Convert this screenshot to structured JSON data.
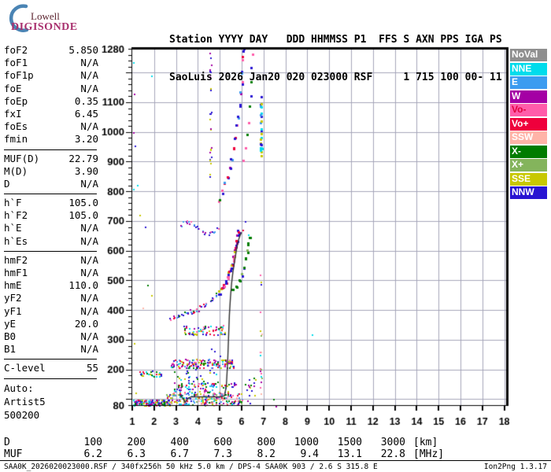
{
  "header": {
    "logo_line1": "Lowell",
    "logo_line2": "DIGISONDE",
    "line1": "Station YYYY DAY   DDD HHMMSS P1  FFS S AXN PPS IGA PS",
    "line2": "SaoLuis 2026 Jan20 020 023000 RSF     1 715 100 00- 11"
  },
  "params": {
    "groups": [
      {
        "rows": [
          [
            "foF2",
            "5.850"
          ],
          [
            "foF1",
            "N/A"
          ],
          [
            "foF1p",
            "N/A"
          ],
          [
            "foE",
            "N/A"
          ],
          [
            "foEp",
            "0.35"
          ],
          [
            "fxI",
            "6.45"
          ],
          [
            "foEs",
            "N/A"
          ],
          [
            "fmin",
            "3.20"
          ]
        ]
      },
      {
        "rows": [
          [
            "MUF(D)",
            "22.79"
          ],
          [
            "M(D)",
            "3.90"
          ],
          [
            "D",
            "N/A"
          ]
        ]
      },
      {
        "rows": [
          [
            "h`F",
            "105.0"
          ],
          [
            "h`F2",
            "105.0"
          ],
          [
            "h`E",
            "N/A"
          ],
          [
            "h`Es",
            "N/A"
          ]
        ]
      },
      {
        "rows": [
          [
            "hmF2",
            "N/A"
          ],
          [
            "hmF1",
            "N/A"
          ],
          [
            "hmE",
            "110.0"
          ],
          [
            "yF2",
            "N/A"
          ],
          [
            "yF1",
            "N/A"
          ],
          [
            "yE",
            "20.0"
          ],
          [
            "B0",
            "N/A"
          ],
          [
            "B1",
            "N/A"
          ]
        ]
      },
      {
        "rows": [
          [
            "C-level",
            "55"
          ]
        ]
      },
      {
        "rows": [
          [
            "Auto:",
            ""
          ],
          [
            "Artist5",
            ""
          ],
          [
            "500200",
            ""
          ]
        ],
        "no_sep": true,
        "wide": true
      }
    ]
  },
  "legend": {
    "items": [
      {
        "label": "NoVal",
        "color": "#8f8f8f",
        "text": "#ffffff"
      },
      {
        "label": "NNE",
        "color": "#00dcec",
        "text": "#ffffff"
      },
      {
        "label": "E",
        "color": "#3c9cf0",
        "text": "#ffffff"
      },
      {
        "label": "W",
        "color": "#a400a4",
        "text": "#ffffff"
      },
      {
        "label": "Vo-",
        "color": "#ff5caa",
        "text": "#e0003c"
      },
      {
        "label": "Vo+",
        "color": "#ef003c",
        "text": "#ffffff"
      },
      {
        "label": "SSW",
        "color": "#ffb4a8",
        "text": "#ffffff"
      },
      {
        "label": "X-",
        "color": "#007c00",
        "text": "#ffffff"
      },
      {
        "label": "X+",
        "color": "#84b45c",
        "text": "#ffffff"
      },
      {
        "label": "SSE",
        "color": "#c8c800",
        "text": "#ffffff"
      },
      {
        "label": "NNW",
        "color": "#2814d2",
        "text": "#ffffff"
      }
    ]
  },
  "bottom_table": {
    "d_label": "D",
    "d_values": [
      "100",
      "200",
      "400",
      "600",
      "800",
      "1000",
      "1500",
      "3000"
    ],
    "d_unit": "[km]",
    "muf_label": "MUF",
    "muf_values": [
      "6.2",
      "6.3",
      "6.7",
      "7.3",
      "8.2",
      "9.4",
      "13.1",
      "22.8"
    ],
    "muf_unit": "[MHz]"
  },
  "footer": {
    "left": "SAA0K_2026020023000.RSF / 340fx256h 50 kHz 5.0 km / DPS-4 SAA0K 903 / 2.6 S 315.8 E",
    "right": "Ion2Png 1.3.17"
  },
  "chart_data": {
    "type": "scatter",
    "x_unit": "MHz",
    "y_unit": "km",
    "xlim": [
      1,
      18
    ],
    "ylim": [
      80,
      1280
    ],
    "x_ticks": [
      1,
      2,
      3,
      4,
      5,
      6,
      7,
      8,
      9,
      10,
      11,
      12,
      13,
      14,
      15,
      16,
      17,
      18
    ],
    "y_tick_labels": [
      1280,
      1100,
      1000,
      900,
      800,
      700,
      600,
      500,
      400,
      300,
      200,
      80
    ],
    "y_minor_step": 20,
    "grid": {
      "x_step": 1,
      "y_from": 100,
      "y_to": 1200,
      "y_step": 100,
      "color": "#a6a6ba"
    },
    "colors": {
      "NoVal": "#8f8f8f",
      "NNE": "#00dcec",
      "E": "#3c9cf0",
      "W": "#a400a4",
      "Vo-": "#ff5caa",
      "Vo+": "#ef003c",
      "SSW": "#ffb4a8",
      "X-": "#007c00",
      "X+": "#84b45c",
      "SSE": "#c8c800",
      "NNW": "#2814d2"
    },
    "features": [
      {
        "kind": "poly_scatter",
        "name": "F2-trace-flat",
        "palette": [
          "NNW",
          "W",
          "Vo-",
          "Vo+",
          "E",
          "X-",
          "NNW"
        ],
        "size": 2,
        "rep": 3,
        "fs": 0.07,
        "hs": 7,
        "seed": 11,
        "pts": [
          [
            2.75,
            372
          ],
          [
            2.9,
            377
          ],
          [
            3.05,
            381
          ],
          [
            3.2,
            385
          ],
          [
            3.35,
            389
          ],
          [
            3.5,
            392
          ],
          [
            3.65,
            396
          ],
          [
            3.8,
            400
          ],
          [
            3.95,
            404
          ],
          [
            4.1,
            409
          ],
          [
            4.25,
            415
          ],
          [
            4.4,
            422
          ],
          [
            4.55,
            431
          ],
          [
            4.7,
            441
          ],
          [
            4.82,
            452
          ]
        ]
      },
      {
        "kind": "poly_scatter",
        "name": "F2-trace-steep-o",
        "palette": [
          "NNW",
          "Vo-",
          "Vo+",
          "SSE",
          "W",
          "NNW"
        ],
        "size": 3,
        "rep": 3,
        "fs": 0.05,
        "hs": 6,
        "seed": 7,
        "pts": [
          [
            4.95,
            462
          ],
          [
            5.05,
            473
          ],
          [
            5.15,
            485
          ],
          [
            5.25,
            498
          ],
          [
            5.33,
            512
          ],
          [
            5.4,
            526
          ],
          [
            5.46,
            540
          ],
          [
            5.52,
            555
          ],
          [
            5.57,
            570
          ],
          [
            5.62,
            586
          ],
          [
            5.66,
            602
          ],
          [
            5.7,
            618
          ],
          [
            5.74,
            634
          ],
          [
            5.77,
            650
          ],
          [
            5.8,
            665
          ]
        ]
      },
      {
        "kind": "poly_scatter",
        "name": "F2-trace-steep-x",
        "palette": [
          "X-",
          "X-",
          "X+",
          "NNW"
        ],
        "size": 3,
        "rep": 2,
        "fs": 0.05,
        "hs": 6,
        "seed": 5,
        "pts": [
          [
            5.55,
            470
          ],
          [
            5.7,
            485
          ],
          [
            5.85,
            502
          ],
          [
            5.97,
            522
          ],
          [
            6.07,
            545
          ],
          [
            6.15,
            572
          ],
          [
            6.22,
            600
          ],
          [
            6.28,
            628
          ],
          [
            6.33,
            650
          ]
        ]
      },
      {
        "kind": "poly_scatter",
        "name": "second-hop-flat",
        "palette": [
          "NNW",
          "W",
          "Vo-",
          "E"
        ],
        "size": 2,
        "rep": 2,
        "fs": 0.06,
        "hs": 6,
        "seed": 9,
        "pts": [
          [
            3.25,
            688
          ],
          [
            3.35,
            695
          ],
          [
            3.45,
            700
          ],
          [
            3.55,
            701
          ],
          [
            3.65,
            696
          ],
          [
            3.78,
            688
          ],
          [
            3.9,
            680
          ],
          [
            4.02,
            673
          ],
          [
            4.15,
            666
          ],
          [
            4.3,
            660
          ],
          [
            4.45,
            657
          ],
          [
            4.6,
            661
          ],
          [
            4.75,
            668
          ],
          [
            4.88,
            677
          ]
        ]
      },
      {
        "kind": "poly_scatter",
        "name": "second-hop-rise-o",
        "palette": [
          "NNW",
          "Vo-",
          "X-",
          "W",
          "E",
          "Vo+",
          "NNW"
        ],
        "size": 3,
        "rep": 2,
        "fs": 0.06,
        "hs": 9,
        "seed": 21,
        "pts": [
          [
            4.95,
            775
          ],
          [
            5.08,
            798
          ],
          [
            5.2,
            824
          ],
          [
            5.32,
            852
          ],
          [
            5.42,
            882
          ],
          [
            5.52,
            914
          ],
          [
            5.6,
            948
          ],
          [
            5.68,
            982
          ],
          [
            5.75,
            1018
          ],
          [
            5.81,
            1055
          ],
          [
            5.87,
            1092
          ],
          [
            5.92,
            1130
          ],
          [
            5.96,
            1168
          ],
          [
            6.0,
            1208
          ],
          [
            6.04,
            1248
          ],
          [
            6.07,
            1276
          ]
        ]
      },
      {
        "kind": "poly_scatter",
        "name": "second-hop-rise-x",
        "palette": [
          "X-",
          "NNW",
          "X-",
          "Vo-"
        ],
        "size": 3,
        "rep": 1,
        "fs": 0.05,
        "hs": 9,
        "seed": 3,
        "pts": [
          [
            6.05,
            905
          ],
          [
            6.13,
            950
          ],
          [
            6.2,
            995
          ],
          [
            6.26,
            1040
          ],
          [
            6.31,
            1085
          ],
          [
            6.36,
            1130
          ],
          [
            6.4,
            1175
          ],
          [
            6.44,
            1220
          ],
          [
            6.48,
            1262
          ]
        ]
      },
      {
        "kind": "vline",
        "name": "interference-4.55MHz",
        "f": 4.55,
        "h0": 775,
        "h1": 1276,
        "n": 26,
        "palette": [
          "NNW",
          "NNW",
          "NNW",
          "SSE",
          "W"
        ],
        "size": 2,
        "seed": 13
      },
      {
        "kind": "vline",
        "name": "interference-6.85MHz-upper",
        "f": 6.85,
        "h0": 920,
        "h1": 1180,
        "n": 24,
        "palette": [
          "NNW",
          "SSE",
          "NNE",
          "E",
          "NNW",
          "SSE"
        ],
        "size": 3,
        "seed": 17
      },
      {
        "kind": "vline",
        "name": "interference-6.85MHz-lower",
        "f": 6.85,
        "h0": 95,
        "h1": 540,
        "n": 20,
        "palette": [
          "NNW",
          "SSE",
          "X+",
          "W",
          "SSW",
          "Vo-",
          "NNE"
        ],
        "size": 2,
        "seed": 19
      },
      {
        "kind": "band",
        "name": "spread-band-330km",
        "f0": 3.3,
        "f1": 5.2,
        "h0": 318,
        "h1": 350,
        "n": 70,
        "palette": [
          "X-",
          "W",
          "NNW",
          "NNE",
          "SSE",
          "Vo+",
          "Vo-"
        ],
        "size": 2,
        "seed": 23
      },
      {
        "kind": "band",
        "name": "echo-band-215km",
        "f0": 2.75,
        "f1": 5.65,
        "h0": 206,
        "h1": 236,
        "n": 150,
        "palette": [
          "Vo+",
          "X-",
          "NNW",
          "NNE",
          "W",
          "SSE",
          "Vo-",
          "E"
        ],
        "size": 2,
        "seed": 29
      },
      {
        "kind": "band",
        "name": "echo-band-190km",
        "f0": 1.2,
        "f1": 2.3,
        "h0": 178,
        "h1": 196,
        "n": 26,
        "palette": [
          "SSE",
          "X-",
          "NNW",
          "Vo+",
          "NNE"
        ],
        "size": 2,
        "seed": 31
      },
      {
        "kind": "band",
        "name": "noise-floor-left",
        "f0": 1.0,
        "f1": 2.7,
        "h0": 80,
        "h1": 100,
        "n": 170,
        "palette": [
          "NNW",
          "E",
          "NNE",
          "Vo+",
          "SSE",
          "X-",
          "W",
          "Vo-"
        ],
        "size": 2,
        "seed": 37
      },
      {
        "kind": "band",
        "name": "noise-floor-mid",
        "f0": 2.5,
        "f1": 6.0,
        "h0": 80,
        "h1": 120,
        "n": 200,
        "palette": [
          "NNW",
          "E",
          "NNE",
          "Vo+",
          "SSE",
          "X-",
          "W",
          "Vo-",
          "SSW",
          "X+"
        ],
        "size": 2,
        "seed": 41
      },
      {
        "kind": "band",
        "name": "e-region-hump",
        "f0": 2.8,
        "f1": 5.7,
        "h0": 115,
        "h1": 160,
        "n": 110,
        "palette": [
          "NNW",
          "Vo+",
          "SSE",
          "X-",
          "W",
          "NNE",
          "E",
          "Vo-"
        ],
        "size": 2,
        "seed": 43
      },
      {
        "kind": "band",
        "name": "sparse-above-hump",
        "f0": 2.9,
        "f1": 5.5,
        "h0": 160,
        "h1": 205,
        "n": 22,
        "palette": [
          "NNW",
          "SSE",
          "X-",
          "NNE"
        ],
        "size": 2,
        "seed": 53
      },
      {
        "kind": "band",
        "name": "sparse-right-of-hump",
        "f0": 6.1,
        "f1": 6.6,
        "h0": 85,
        "h1": 175,
        "n": 16,
        "palette": [
          "NNW",
          "X-",
          "SSE",
          "W"
        ],
        "size": 2,
        "seed": 47
      },
      {
        "kind": "dots",
        "name": "stray-echoes",
        "size": 2,
        "pts": [
          [
            1.05,
            1235,
            "NNE"
          ],
          [
            1.85,
            1190,
            "NNE"
          ],
          [
            1.07,
            1128,
            "W"
          ],
          [
            1.12,
            955,
            "NNW"
          ],
          [
            1.02,
            1000,
            "W"
          ],
          [
            1.05,
            808,
            "NNE"
          ],
          [
            1.2,
            822,
            "NNE"
          ],
          [
            1.32,
            722,
            "SSE"
          ],
          [
            1.58,
            682,
            "NNW"
          ],
          [
            1.7,
            485,
            "X-"
          ],
          [
            1.45,
            408,
            "SSW"
          ],
          [
            1.85,
            452,
            "SSE"
          ],
          [
            1.07,
            288,
            "SSE"
          ],
          [
            1.15,
            122,
            "SSE"
          ],
          [
            7.45,
            100,
            "X-"
          ],
          [
            7.55,
            78,
            "W"
          ],
          [
            6.3,
            655,
            "NNE"
          ],
          [
            6.15,
            700,
            "NNW"
          ],
          [
            6.05,
            672,
            "Vo+"
          ],
          [
            9.2,
            318,
            "NNE"
          ],
          [
            4.6,
            272,
            "NNW"
          ],
          [
            4.75,
            262,
            "NNW"
          ],
          [
            5.0,
            248,
            "NNW"
          ]
        ]
      },
      {
        "kind": "polyline",
        "name": "artist-autoscaled-trace",
        "color": "#303030",
        "width": 1.4,
        "pts": [
          [
            3.15,
            115
          ],
          [
            3.3,
            104
          ],
          [
            3.42,
            90
          ],
          [
            3.55,
            103
          ],
          [
            3.7,
            108
          ],
          [
            4.1,
            108
          ],
          [
            4.6,
            108
          ],
          [
            5.05,
            108
          ],
          [
            5.22,
            112
          ],
          [
            5.3,
            145
          ],
          [
            5.36,
            225
          ],
          [
            5.4,
            305
          ],
          [
            5.44,
            385
          ],
          [
            5.49,
            445
          ],
          [
            5.54,
            490
          ],
          [
            5.6,
            528
          ],
          [
            5.68,
            565
          ],
          [
            5.76,
            602
          ],
          [
            5.84,
            632
          ],
          [
            5.93,
            652
          ],
          [
            6.0,
            662
          ]
        ]
      }
    ]
  }
}
